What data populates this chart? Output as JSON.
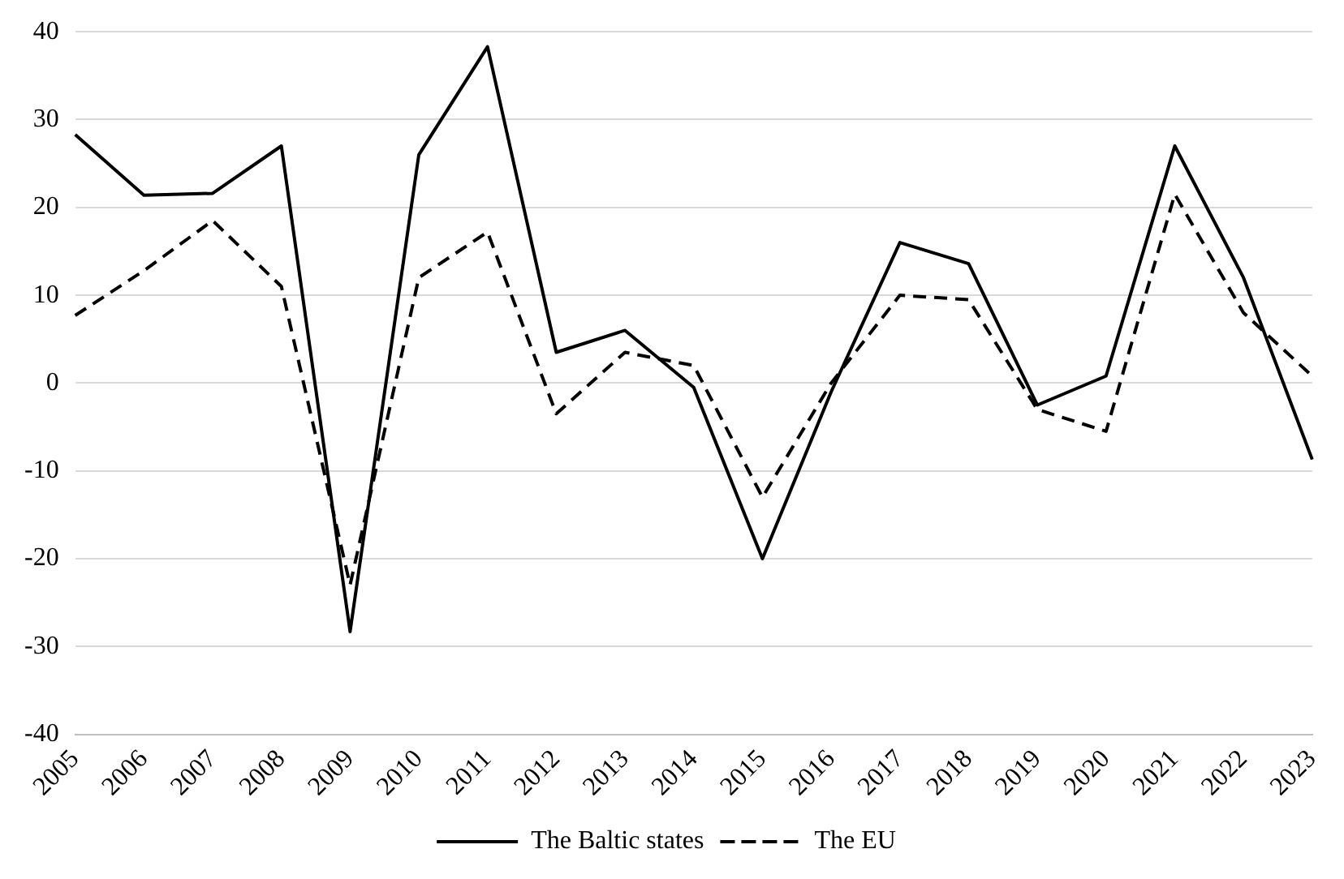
{
  "chart_data": {
    "type": "line",
    "categories": [
      "2005",
      "2006",
      "2007",
      "2008",
      "2009",
      "2010",
      "2011",
      "2012",
      "2013",
      "2014",
      "2015",
      "2016",
      "2017",
      "2018",
      "2019",
      "2020",
      "2021",
      "2022",
      "2023"
    ],
    "series": [
      {
        "name": "The Baltic states",
        "color": "#000000",
        "line_style": "solid",
        "values": [
          28.3,
          21.4,
          21.6,
          27,
          -28.3,
          26,
          38.3,
          3.5,
          6,
          -0.5,
          -20,
          -1,
          16,
          13.6,
          -2.5,
          0.8,
          27,
          12,
          -8.7
        ]
      },
      {
        "name": "The EU",
        "color": "#000000",
        "line_style": "dashed",
        "values": [
          7.7,
          12.8,
          18.5,
          11,
          -23,
          12,
          17.2,
          -3.5,
          3.5,
          2,
          -13,
          0,
          10,
          9.5,
          -3,
          -5.5,
          21.5,
          8,
          0.8
        ]
      }
    ],
    "ylim": [
      -40,
      40
    ],
    "yticks": [
      -40,
      -30,
      -20,
      -10,
      0,
      10,
      20,
      30,
      40
    ],
    "grid": "y",
    "legend": "bottom",
    "marker": "none"
  }
}
